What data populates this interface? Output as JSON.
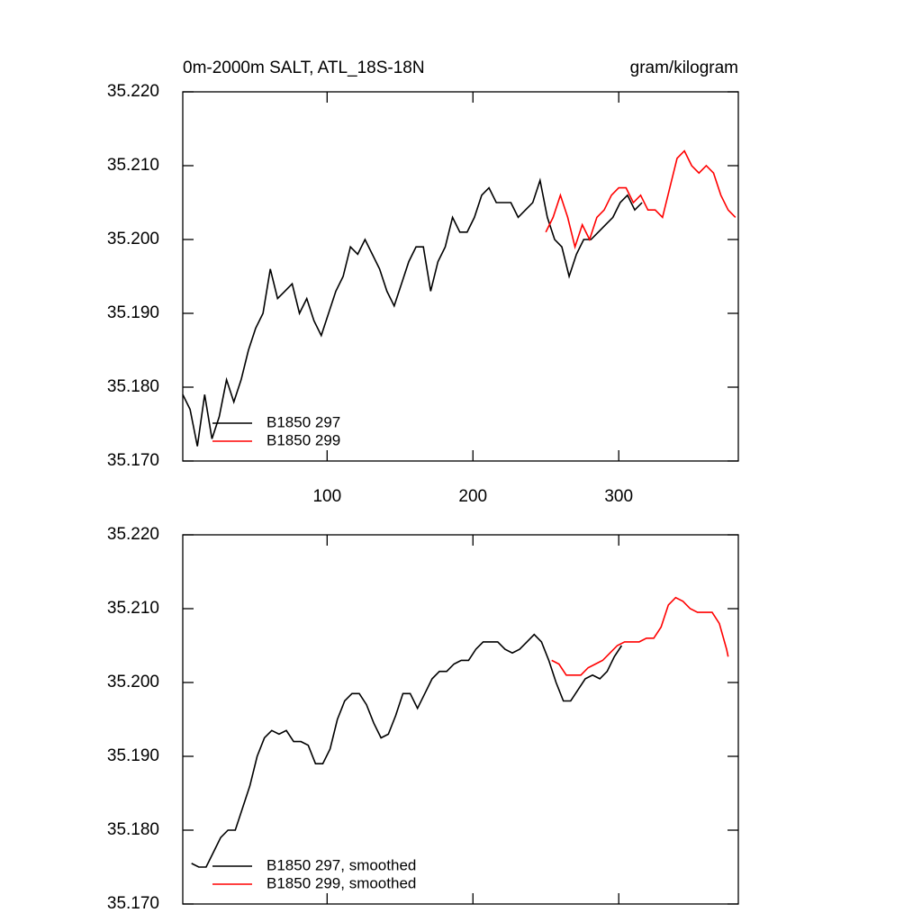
{
  "chart_data": [
    {
      "type": "line",
      "title": "0m-2000m SALT, ATL_18S-18N",
      "units": "gram/kilogram",
      "xlim": [
        1,
        382
      ],
      "xticks": [
        100,
        200,
        300
      ],
      "ylim": [
        35.17,
        35.22
      ],
      "yticks": [
        {
          "value": 35.17,
          "label": "35.170"
        },
        {
          "value": 35.18,
          "label": "35.180"
        },
        {
          "value": 35.19,
          "label": "35.190"
        },
        {
          "value": 35.2,
          "label": "35.200"
        },
        {
          "value": 35.21,
          "label": "35.210"
        },
        {
          "value": 35.22,
          "label": "35.220"
        }
      ],
      "series": [
        {
          "name": "B1850 297",
          "color": "#000000",
          "x": [
            1,
            6,
            11,
            16,
            21,
            26,
            31,
            36,
            41,
            46,
            51,
            56,
            61,
            66,
            71,
            76,
            81,
            86,
            91,
            96,
            101,
            106,
            111,
            116,
            121,
            126,
            131,
            136,
            141,
            146,
            151,
            156,
            161,
            166,
            171,
            176,
            181,
            186,
            191,
            196,
            201,
            206,
            211,
            216,
            221,
            226,
            231,
            236,
            241,
            246,
            251,
            256,
            261,
            266,
            271,
            276,
            281,
            286,
            291,
            296,
            301,
            306,
            311,
            316
          ],
          "values": [
            35.179,
            35.177,
            35.172,
            35.179,
            35.173,
            35.176,
            35.181,
            35.178,
            35.181,
            35.185,
            35.188,
            35.19,
            35.196,
            35.192,
            35.193,
            35.194,
            35.19,
            35.192,
            35.189,
            35.187,
            35.19,
            35.193,
            35.195,
            35.199,
            35.198,
            35.2,
            35.198,
            35.196,
            35.193,
            35.191,
            35.194,
            35.197,
            35.199,
            35.199,
            35.193,
            35.197,
            35.199,
            35.203,
            35.201,
            35.201,
            35.203,
            35.206,
            35.207,
            35.205,
            35.205,
            35.205,
            35.203,
            35.204,
            35.205,
            35.208,
            35.203,
            35.2,
            35.199,
            35.195,
            35.198,
            35.2,
            35.2,
            35.201,
            35.202,
            35.203,
            35.205,
            35.206,
            35.204,
            35.205
          ]
        },
        {
          "name": "B1850 299",
          "color": "#ff0000",
          "x": [
            250,
            255,
            260,
            265,
            270,
            275,
            280,
            285,
            290,
            295,
            300,
            305,
            310,
            315,
            320,
            325,
            330,
            335,
            340,
            345,
            350,
            355,
            360,
            365,
            370,
            375,
            380
          ],
          "values": [
            35.201,
            35.203,
            35.206,
            35.203,
            35.199,
            35.202,
            35.2,
            35.203,
            35.204,
            35.206,
            35.207,
            35.207,
            35.205,
            35.206,
            35.204,
            35.204,
            35.203,
            35.207,
            35.211,
            35.212,
            35.21,
            35.209,
            35.21,
            35.209,
            35.206,
            35.204,
            35.203
          ]
        }
      ]
    },
    {
      "type": "line",
      "xlim": [
        1,
        382
      ],
      "ylim": [
        35.17,
        35.22
      ],
      "yticks": [
        {
          "value": 35.17,
          "label": "35.170"
        },
        {
          "value": 35.18,
          "label": "35.180"
        },
        {
          "value": 35.19,
          "label": "35.190"
        },
        {
          "value": 35.2,
          "label": "35.200"
        },
        {
          "value": 35.21,
          "label": "35.210"
        },
        {
          "value": 35.22,
          "label": "35.220"
        }
      ],
      "series": [
        {
          "name": "B1850 297, smoothed",
          "color": "#000000",
          "x": [
            7,
            12,
            17,
            22,
            27,
            32,
            37,
            42,
            47,
            52,
            57,
            62,
            67,
            72,
            77,
            82,
            87,
            92,
            97,
            102,
            107,
            112,
            117,
            122,
            127,
            132,
            137,
            142,
            147,
            152,
            157,
            162,
            167,
            172,
            177,
            182,
            187,
            192,
            197,
            202,
            207,
            212,
            217,
            222,
            227,
            232,
            237,
            242,
            247,
            252,
            257,
            262,
            267,
            272,
            277,
            282,
            287,
            292,
            297,
            302
          ],
          "values": [
            35.1755,
            35.175,
            35.175,
            35.177,
            35.179,
            35.18,
            35.18,
            35.183,
            35.186,
            35.19,
            35.1925,
            35.1935,
            35.193,
            35.1935,
            35.192,
            35.192,
            35.1915,
            35.189,
            35.189,
            35.191,
            35.195,
            35.1975,
            35.1985,
            35.1985,
            35.197,
            35.1945,
            35.1925,
            35.193,
            35.1955,
            35.1985,
            35.1985,
            35.1965,
            35.1985,
            35.2005,
            35.2015,
            35.2015,
            35.2025,
            35.203,
            35.203,
            35.2045,
            35.2055,
            35.2055,
            35.2055,
            35.2045,
            35.204,
            35.2045,
            35.2055,
            35.2065,
            35.2055,
            35.203,
            35.2,
            35.1975,
            35.1975,
            35.199,
            35.2005,
            35.201,
            35.2005,
            35.2015,
            35.2035,
            35.205
          ]
        },
        {
          "name": "B1850 299, smoothed",
          "color": "#ff0000",
          "x": [
            254,
            259,
            264,
            269,
            274,
            279,
            284,
            289,
            294,
            299,
            304,
            309,
            314,
            319,
            324,
            329,
            334,
            339,
            344,
            349,
            354,
            359,
            364,
            369,
            374,
            375
          ],
          "values": [
            35.203,
            35.2025,
            35.201,
            35.201,
            35.201,
            35.202,
            35.2025,
            35.203,
            35.204,
            35.205,
            35.2055,
            35.2055,
            35.2055,
            35.206,
            35.206,
            35.2075,
            35.2105,
            35.2115,
            35.211,
            35.21,
            35.2095,
            35.2095,
            35.2095,
            35.208,
            35.2045,
            35.2035
          ]
        }
      ]
    }
  ]
}
